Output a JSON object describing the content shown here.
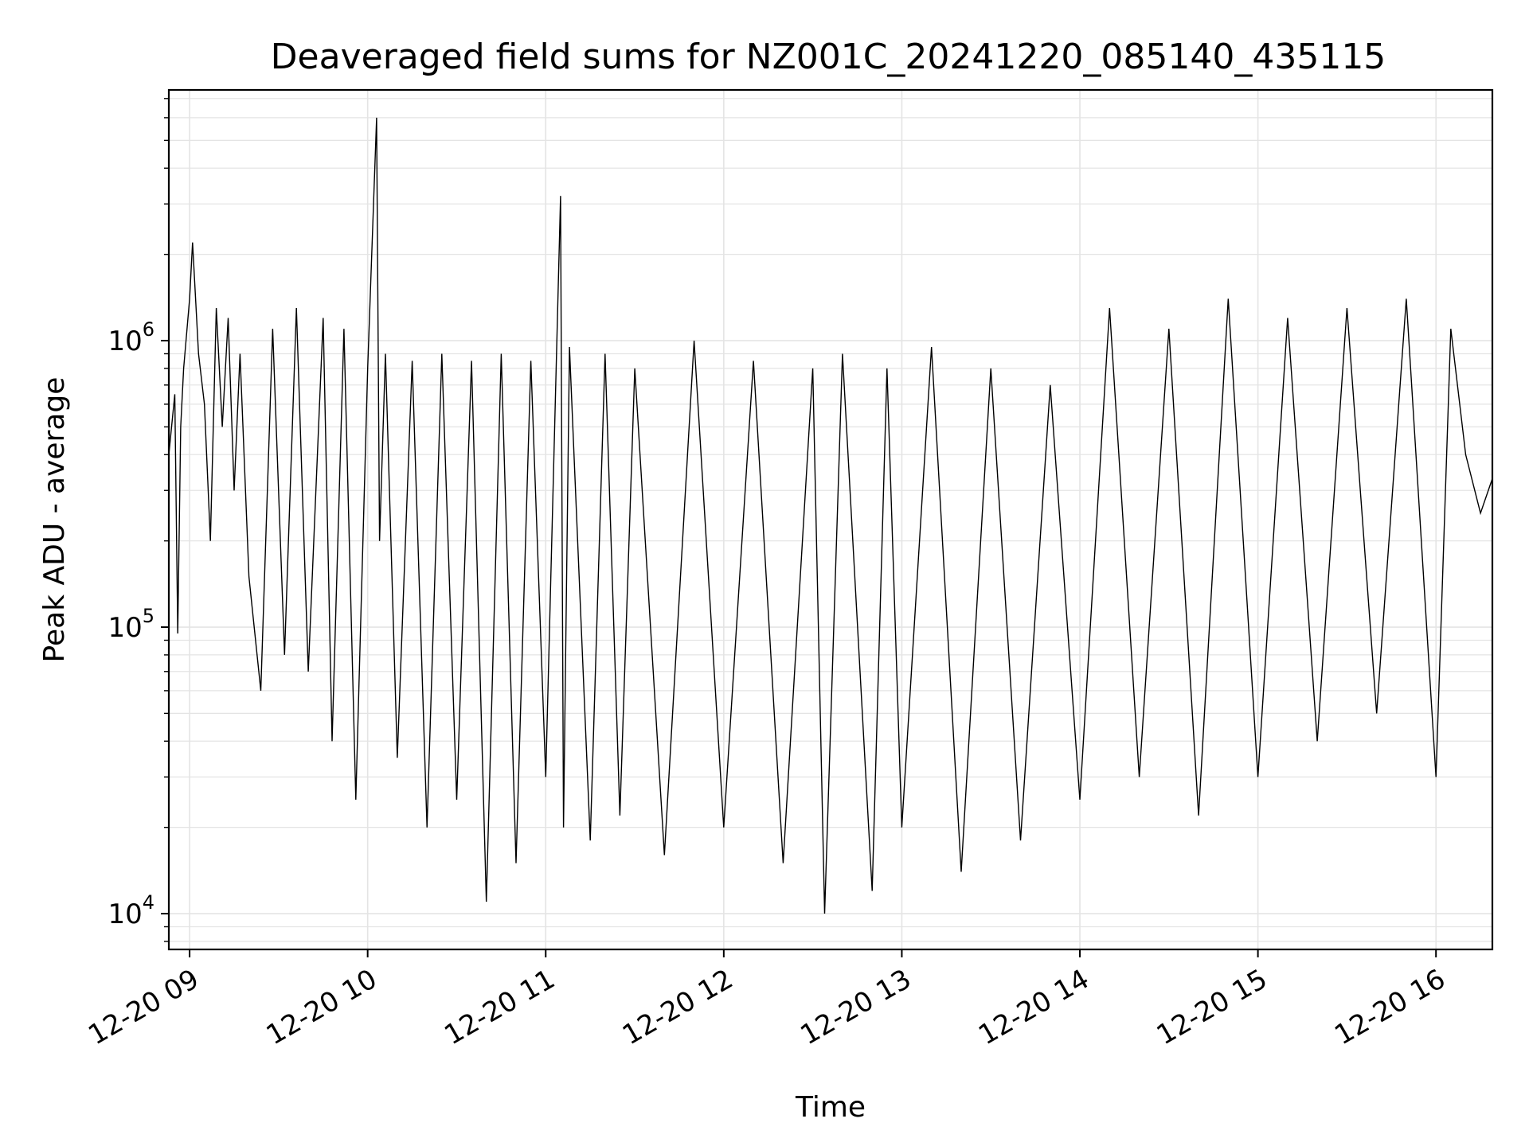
{
  "chart_data": {
    "type": "line",
    "title": "Deaveraged field sums for NZ001C_20241220_085140_435115",
    "xlabel": "Time",
    "ylabel": "Peak ADU - average",
    "yscale": "log",
    "ylim": [
      7500,
      7500000
    ],
    "xlim": [
      "2024-12-20 08:53",
      "2024-12-20 16:19"
    ],
    "grid": true,
    "line_color": "#000000",
    "x_ticks": [
      {
        "value": "2024-12-20 09:00",
        "label": "12-20 09"
      },
      {
        "value": "2024-12-20 10:00",
        "label": "12-20 10"
      },
      {
        "value": "2024-12-20 11:00",
        "label": "12-20 11"
      },
      {
        "value": "2024-12-20 12:00",
        "label": "12-20 12"
      },
      {
        "value": "2024-12-20 13:00",
        "label": "12-20 13"
      },
      {
        "value": "2024-12-20 14:00",
        "label": "12-20 14"
      },
      {
        "value": "2024-12-20 15:00",
        "label": "12-20 15"
      },
      {
        "value": "2024-12-20 16:00",
        "label": "12-20 16"
      }
    ],
    "y_ticks": [
      {
        "value": 10000,
        "base": "10",
        "exp": "4"
      },
      {
        "value": 100000,
        "base": "10",
        "exp": "5"
      },
      {
        "value": 1000000,
        "base": "10",
        "exp": "6"
      }
    ],
    "series": [
      {
        "x": [
          "2024-12-20 08:53",
          "2024-12-20 08:55",
          "2024-12-20 08:56",
          "2024-12-20 08:57",
          "2024-12-20 08:58",
          "2024-12-20 09:00",
          "2024-12-20 09:01",
          "2024-12-20 09:03",
          "2024-12-20 09:05",
          "2024-12-20 09:07",
          "2024-12-20 09:09",
          "2024-12-20 09:11",
          "2024-12-20 09:13",
          "2024-12-20 09:15",
          "2024-12-20 09:17",
          "2024-12-20 09:20",
          "2024-12-20 09:24",
          "2024-12-20 09:28",
          "2024-12-20 09:32",
          "2024-12-20 09:36",
          "2024-12-20 09:40",
          "2024-12-20 09:45",
          "2024-12-20 09:48",
          "2024-12-20 09:52",
          "2024-12-20 09:56",
          "2024-12-20 10:00",
          "2024-12-20 10:03",
          "2024-12-20 10:04",
          "2024-12-20 10:06",
          "2024-12-20 10:10",
          "2024-12-20 10:15",
          "2024-12-20 10:20",
          "2024-12-20 10:25",
          "2024-12-20 10:30",
          "2024-12-20 10:35",
          "2024-12-20 10:40",
          "2024-12-20 10:45",
          "2024-12-20 10:50",
          "2024-12-20 10:55",
          "2024-12-20 11:00",
          "2024-12-20 11:05",
          "2024-12-20 11:06",
          "2024-12-20 11:08",
          "2024-12-20 11:15",
          "2024-12-20 11:20",
          "2024-12-20 11:25",
          "2024-12-20 11:30",
          "2024-12-20 11:40",
          "2024-12-20 11:50",
          "2024-12-20 12:00",
          "2024-12-20 12:10",
          "2024-12-20 12:20",
          "2024-12-20 12:30",
          "2024-12-20 12:34",
          "2024-12-20 12:40",
          "2024-12-20 12:50",
          "2024-12-20 12:55",
          "2024-12-20 13:00",
          "2024-12-20 13:10",
          "2024-12-20 13:20",
          "2024-12-20 13:30",
          "2024-12-20 13:40",
          "2024-12-20 13:50",
          "2024-12-20 14:00",
          "2024-12-20 14:10",
          "2024-12-20 14:20",
          "2024-12-20 14:30",
          "2024-12-20 14:40",
          "2024-12-20 14:50",
          "2024-12-20 15:00",
          "2024-12-20 15:10",
          "2024-12-20 15:20",
          "2024-12-20 15:30",
          "2024-12-20 15:40",
          "2024-12-20 15:50",
          "2024-12-20 16:00",
          "2024-12-20 16:05",
          "2024-12-20 16:10",
          "2024-12-20 16:15",
          "2024-12-20 16:19"
        ],
        "y": [
          400000,
          650000,
          95000,
          500000,
          800000,
          1400000,
          2200000,
          900000,
          600000,
          200000,
          1300000,
          500000,
          1200000,
          300000,
          900000,
          150000,
          60000,
          1100000,
          80000,
          1300000,
          70000,
          1200000,
          40000,
          1100000,
          25000,
          800000,
          6000000,
          200000,
          900000,
          35000,
          850000,
          20000,
          900000,
          25000,
          850000,
          11000,
          900000,
          15000,
          850000,
          30000,
          3200000,
          20000,
          950000,
          18000,
          900000,
          22000,
          800000,
          16000,
          1000000,
          20000,
          850000,
          15000,
          800000,
          10000,
          900000,
          12000,
          800000,
          20000,
          950000,
          14000,
          800000,
          18000,
          700000,
          25000,
          1300000,
          30000,
          1100000,
          22000,
          1400000,
          30000,
          1200000,
          40000,
          1300000,
          50000,
          1400000,
          30000,
          1100000,
          400000,
          250000,
          330000
        ]
      }
    ]
  }
}
